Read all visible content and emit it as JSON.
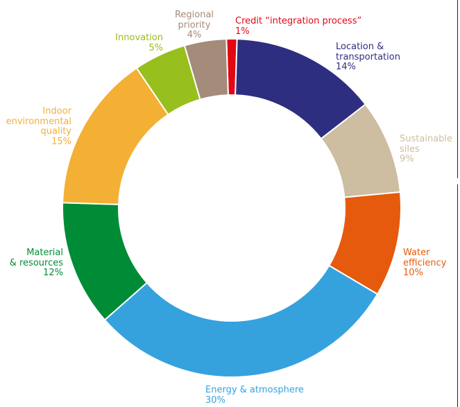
{
  "chart_data": {
    "type": "pie",
    "title": "",
    "donut": true,
    "slices": [
      {
        "id": "credit",
        "lines": [
          "Credit “integration process”"
        ],
        "pct_label": "1%",
        "value": 1,
        "color": "#e30613"
      },
      {
        "id": "location",
        "lines": [
          "Location &",
          "transportation"
        ],
        "pct_label": "14%",
        "value": 14,
        "color": "#2e2e80"
      },
      {
        "id": "sustainable",
        "lines": [
          "Sustainable",
          "siles"
        ],
        "pct_label": "9%",
        "value": 9,
        "color": "#cdbda1"
      },
      {
        "id": "water",
        "lines": [
          "Water",
          "efficiency"
        ],
        "pct_label": "10%",
        "value": 10,
        "color": "#e55a0c"
      },
      {
        "id": "energy",
        "lines": [
          "Energy & atmosphere"
        ],
        "pct_label": "30%",
        "value": 30,
        "color": "#35a2de"
      },
      {
        "id": "material",
        "lines": [
          "Material",
          "& resources"
        ],
        "pct_label": "12%",
        "value": 12,
        "color": "#008c36"
      },
      {
        "id": "indoor",
        "lines": [
          "Indoor",
          "environmental",
          "quality"
        ],
        "pct_label": "15%",
        "value": 15,
        "color": "#f4af35"
      },
      {
        "id": "innovation",
        "lines": [
          "Innovation"
        ],
        "pct_label": "5%",
        "value": 5,
        "color": "#97bf1d"
      },
      {
        "id": "regional",
        "lines": [
          "Regional",
          "priority"
        ],
        "pct_label": "4%",
        "value": 4,
        "color": "#a48b7a"
      }
    ]
  }
}
